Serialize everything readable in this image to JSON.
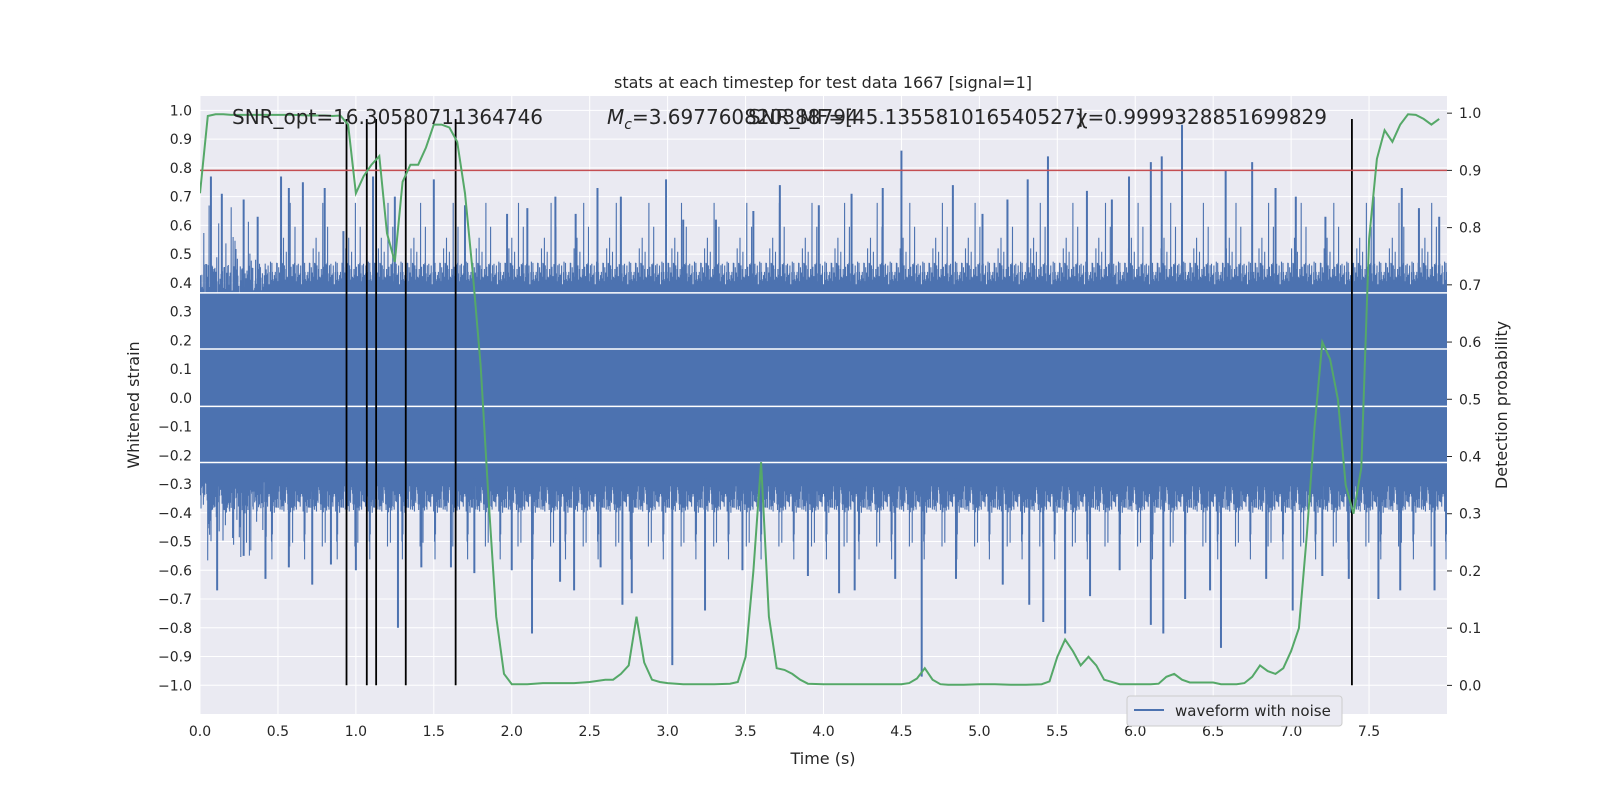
{
  "chart_data": {
    "type": "line",
    "title": "stats at each timestep for test data 1667 [signal=1]",
    "xlabel": "Time (s)",
    "ylabel": "Whitened strain",
    "y2label": "Detection probability",
    "xlim": [
      0,
      8
    ],
    "ylim": [
      -1.1,
      1.05
    ],
    "y2lim": [
      -0.05,
      1.03
    ],
    "xticks": [
      "0.0",
      "0.5",
      "1.0",
      "1.5",
      "2.0",
      "2.5",
      "3.0",
      "3.5",
      "4.0",
      "4.5",
      "5.0",
      "5.5",
      "6.0",
      "6.5",
      "7.0",
      "7.5"
    ],
    "xtick_values": [
      0,
      0.5,
      1,
      1.5,
      2,
      2.5,
      3,
      3.5,
      4,
      4.5,
      5,
      5.5,
      6,
      6.5,
      7,
      7.5
    ],
    "yticks": [
      "1.0",
      "0.9",
      "0.8",
      "0.7",
      "0.6",
      "0.5",
      "0.4",
      "0.3",
      "0.2",
      "0.1",
      "0.0",
      "−0.1",
      "−0.2",
      "−0.3",
      "−0.4",
      "−0.5",
      "−0.6",
      "−0.7",
      "−0.8",
      "−0.9",
      "−1.0"
    ],
    "ytick_values": [
      1.0,
      0.9,
      0.8,
      0.7,
      0.6,
      0.5,
      0.4,
      0.3,
      0.2,
      0.1,
      0.0,
      -0.1,
      -0.2,
      -0.3,
      -0.4,
      -0.5,
      -0.6,
      -0.7,
      -0.8,
      -0.9,
      -1.0
    ],
    "y2ticks": [
      "1.0",
      "0.9",
      "0.8",
      "0.7",
      "0.6",
      "0.5",
      "0.4",
      "0.3",
      "0.2",
      "0.1",
      "0.0"
    ],
    "y2tick_values": [
      1.0,
      0.9,
      0.8,
      0.7,
      0.6,
      0.5,
      0.4,
      0.3,
      0.2,
      0.1,
      0.0
    ],
    "grid": true,
    "legend": {
      "position": "lower-right",
      "entries": [
        "waveform with noise"
      ]
    },
    "annotations": [
      {
        "text": "SNR_opt=16.30580711364746"
      },
      {
        "text_prefix": "M",
        "text_sub": "c",
        "text_suffix": "=3.697760820388794"
      },
      {
        "text": "SNR_MF=[45.135581016540527]"
      },
      {
        "text": "χ=0.9999328851699829"
      }
    ],
    "waveform": {
      "name": "waveform with noise",
      "color": "#4c72b0",
      "duration_s": 8,
      "band_low": -0.28,
      "band_high": 0.35,
      "white_lines_y": [
        0.365,
        0.17,
        -0.03,
        -0.225
      ],
      "peaks_up": [
        [
          0.07,
          0.77
        ],
        [
          0.14,
          0.71
        ],
        [
          0.28,
          0.69
        ],
        [
          0.37,
          0.63
        ],
        [
          0.52,
          0.77
        ],
        [
          0.57,
          0.73
        ],
        [
          0.66,
          0.75
        ],
        [
          0.8,
          0.73
        ],
        [
          0.92,
          0.58
        ],
        [
          1.11,
          0.77
        ],
        [
          1.25,
          0.7
        ],
        [
          1.5,
          0.76
        ],
        [
          1.7,
          0.67
        ],
        [
          1.97,
          0.64
        ],
        [
          2.1,
          0.66
        ],
        [
          2.28,
          0.7
        ],
        [
          2.41,
          0.64
        ],
        [
          2.55,
          0.73
        ],
        [
          2.7,
          0.7
        ],
        [
          2.99,
          0.76
        ],
        [
          3.1,
          0.62
        ],
        [
          3.31,
          0.62
        ],
        [
          3.55,
          0.65
        ],
        [
          3.72,
          0.74
        ],
        [
          3.97,
          0.67
        ],
        [
          4.18,
          0.71
        ],
        [
          4.38,
          0.73
        ],
        [
          4.5,
          0.86
        ],
        [
          4.83,
          0.74
        ],
        [
          5.02,
          0.64
        ],
        [
          5.18,
          0.69
        ],
        [
          5.31,
          0.76
        ],
        [
          5.44,
          0.84
        ],
        [
          5.69,
          0.72
        ],
        [
          5.85,
          0.69
        ],
        [
          5.96,
          0.77
        ],
        [
          6.1,
          0.82
        ],
        [
          6.17,
          0.84
        ],
        [
          6.3,
          0.95
        ],
        [
          6.58,
          0.79
        ],
        [
          6.75,
          0.82
        ],
        [
          6.9,
          0.73
        ],
        [
          7.03,
          0.7
        ],
        [
          7.22,
          0.63
        ],
        [
          7.53,
          0.7
        ],
        [
          7.71,
          0.73
        ],
        [
          7.82,
          0.66
        ],
        [
          7.95,
          0.63
        ]
      ],
      "peaks_down": [
        [
          0.11,
          -0.67
        ],
        [
          0.28,
          -0.55
        ],
        [
          0.42,
          -0.63
        ],
        [
          0.57,
          -0.59
        ],
        [
          0.72,
          -0.65
        ],
        [
          0.84,
          -0.58
        ],
        [
          1.0,
          -0.6
        ],
        [
          1.27,
          -0.8
        ],
        [
          1.42,
          -0.59
        ],
        [
          1.61,
          -0.59
        ],
        [
          1.76,
          -0.61
        ],
        [
          2.0,
          -0.6
        ],
        [
          2.13,
          -0.82
        ],
        [
          2.31,
          -0.64
        ],
        [
          2.4,
          -0.67
        ],
        [
          2.57,
          -0.59
        ],
        [
          2.71,
          -0.72
        ],
        [
          2.77,
          -0.68
        ],
        [
          3.03,
          -0.93
        ],
        [
          3.24,
          -0.74
        ],
        [
          3.48,
          -0.6
        ],
        [
          3.9,
          -0.62
        ],
        [
          4.1,
          -0.68
        ],
        [
          4.2,
          -0.67
        ],
        [
          4.46,
          -0.63
        ],
        [
          4.63,
          -0.97
        ],
        [
          4.85,
          -0.63
        ],
        [
          5.15,
          -0.65
        ],
        [
          5.32,
          -0.72
        ],
        [
          5.41,
          -0.78
        ],
        [
          5.55,
          -0.82
        ],
        [
          5.71,
          -0.69
        ],
        [
          5.9,
          -0.6
        ],
        [
          6.1,
          -0.79
        ],
        [
          6.18,
          -0.82
        ],
        [
          6.32,
          -0.7
        ],
        [
          6.48,
          -0.67
        ],
        [
          6.55,
          -0.87
        ],
        [
          6.84,
          -0.63
        ],
        [
          7.01,
          -0.74
        ],
        [
          7.2,
          -0.62
        ],
        [
          7.37,
          -0.63
        ],
        [
          7.56,
          -0.7
        ],
        [
          7.7,
          -0.67
        ],
        [
          7.92,
          -0.67
        ]
      ]
    },
    "probability_line": {
      "color": "#55a868",
      "x": [
        0.0,
        0.05,
        0.1,
        0.15,
        0.2,
        0.3,
        0.4,
        0.5,
        0.6,
        0.7,
        0.8,
        0.85,
        0.9,
        0.95,
        1.0,
        1.05,
        1.1,
        1.15,
        1.2,
        1.25,
        1.3,
        1.35,
        1.4,
        1.45,
        1.5,
        1.55,
        1.6,
        1.65,
        1.7,
        1.75,
        1.8,
        1.85,
        1.9,
        1.95,
        2.0,
        2.1,
        2.2,
        2.3,
        2.4,
        2.5,
        2.6,
        2.65,
        2.7,
        2.75,
        2.8,
        2.85,
        2.9,
        2.95,
        3.0,
        3.1,
        3.2,
        3.3,
        3.4,
        3.45,
        3.5,
        3.55,
        3.6,
        3.65,
        3.7,
        3.75,
        3.8,
        3.85,
        3.9,
        4.0,
        4.1,
        4.2,
        4.3,
        4.4,
        4.5,
        4.55,
        4.6,
        4.65,
        4.7,
        4.75,
        4.8,
        4.9,
        5.0,
        5.1,
        5.2,
        5.3,
        5.4,
        5.45,
        5.5,
        5.55,
        5.6,
        5.65,
        5.7,
        5.75,
        5.8,
        5.9,
        6.0,
        6.1,
        6.15,
        6.2,
        6.25,
        6.3,
        6.35,
        6.4,
        6.5,
        6.55,
        6.6,
        6.65,
        6.7,
        6.75,
        6.8,
        6.85,
        6.9,
        6.95,
        7.0,
        7.05,
        7.1,
        7.15,
        7.2,
        7.25,
        7.3,
        7.35,
        7.4,
        7.45,
        7.5,
        7.55,
        7.6,
        7.65,
        7.7,
        7.75,
        7.8,
        7.85,
        7.9,
        7.95
      ],
      "y": [
        0.86,
        0.995,
        0.998,
        0.998,
        0.997,
        0.997,
        0.997,
        0.997,
        0.997,
        0.996,
        0.996,
        0.995,
        0.996,
        0.98,
        0.86,
        0.89,
        0.91,
        0.925,
        0.79,
        0.74,
        0.88,
        0.91,
        0.91,
        0.94,
        0.98,
        0.98,
        0.975,
        0.95,
        0.86,
        0.72,
        0.56,
        0.33,
        0.12,
        0.02,
        0.002,
        0.002,
        0.004,
        0.004,
        0.004,
        0.006,
        0.01,
        0.01,
        0.02,
        0.035,
        0.12,
        0.04,
        0.01,
        0.006,
        0.004,
        0.002,
        0.002,
        0.002,
        0.003,
        0.006,
        0.05,
        0.2,
        0.39,
        0.12,
        0.03,
        0.027,
        0.02,
        0.01,
        0.003,
        0.002,
        0.002,
        0.002,
        0.002,
        0.002,
        0.002,
        0.004,
        0.012,
        0.03,
        0.01,
        0.002,
        0.001,
        0.001,
        0.002,
        0.002,
        0.001,
        0.001,
        0.002,
        0.007,
        0.05,
        0.08,
        0.06,
        0.035,
        0.05,
        0.035,
        0.01,
        0.002,
        0.002,
        0.002,
        0.003,
        0.015,
        0.02,
        0.01,
        0.005,
        0.005,
        0.005,
        0.002,
        0.002,
        0.002,
        0.004,
        0.015,
        0.035,
        0.025,
        0.02,
        0.03,
        0.06,
        0.1,
        0.26,
        0.45,
        0.6,
        0.57,
        0.5,
        0.35,
        0.3,
        0.38,
        0.78,
        0.92,
        0.97,
        0.95,
        0.98,
        0.998,
        0.997,
        0.99,
        0.98,
        0.99
      ]
    },
    "threshold": {
      "y2": 0.9,
      "color": "#c44e52"
    },
    "vertical_lines": {
      "x": [
        0.94,
        1.07,
        1.13,
        1.32,
        1.64,
        7.39
      ],
      "y_top": 0.97,
      "y_bottom": -1.0,
      "color": "#000000"
    },
    "colors": {
      "background": "#eaeaf2",
      "grid": "#ffffff"
    }
  }
}
